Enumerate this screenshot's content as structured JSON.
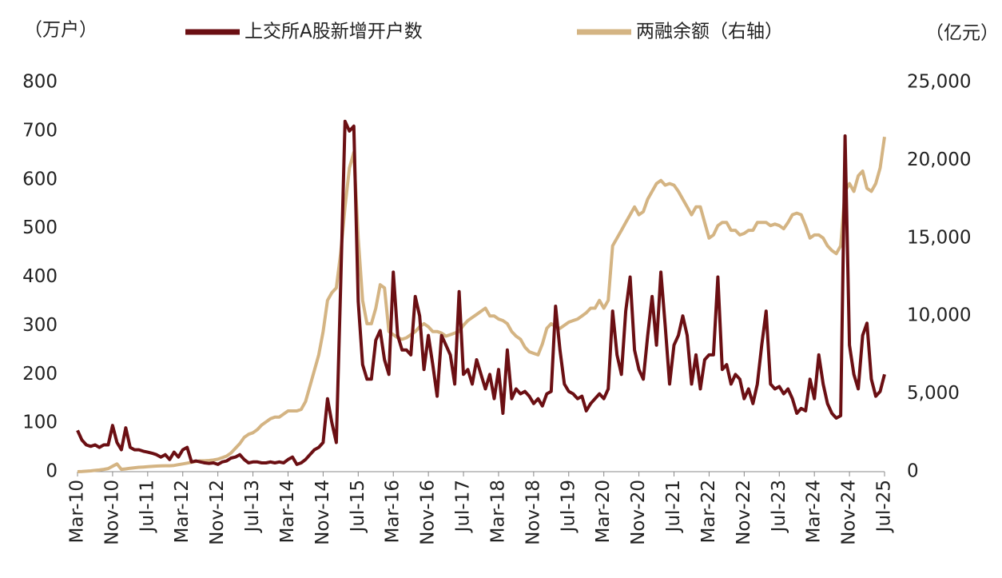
{
  "chart_data": {
    "type": "line",
    "y_label": "（万户）",
    "y2_label": "（亿元）",
    "categories": [
      "Mar-10",
      null,
      null,
      null,
      null,
      null,
      null,
      null,
      "Nov-10",
      null,
      null,
      null,
      null,
      null,
      null,
      null,
      "Jul-11",
      null,
      null,
      null,
      null,
      null,
      null,
      null,
      "Mar-12",
      null,
      null,
      null,
      null,
      null,
      null,
      null,
      "Nov-12",
      null,
      null,
      null,
      null,
      null,
      null,
      null,
      "Jul-13",
      null,
      null,
      null,
      null,
      null,
      null,
      null,
      "Mar-14",
      null,
      null,
      null,
      null,
      null,
      null,
      null,
      "Nov-14",
      null,
      null,
      null,
      null,
      null,
      null,
      null,
      "Jul-15",
      null,
      null,
      null,
      null,
      null,
      null,
      null,
      "Mar-16",
      null,
      null,
      null,
      null,
      null,
      null,
      null,
      "Nov-16",
      null,
      null,
      null,
      null,
      null,
      null,
      null,
      "Jul-17",
      null,
      null,
      null,
      null,
      null,
      null,
      null,
      "Mar-18",
      null,
      null,
      null,
      null,
      null,
      null,
      null,
      "Nov-18",
      null,
      null,
      null,
      null,
      null,
      null,
      null,
      "Jul-19",
      null,
      null,
      null,
      null,
      null,
      null,
      null,
      "Mar-20",
      null,
      null,
      null,
      null,
      null,
      null,
      null,
      "Nov-20",
      null,
      null,
      null,
      null,
      null,
      null,
      null,
      "Jul-21",
      null,
      null,
      null,
      null,
      null,
      null,
      null,
      "Mar-22",
      null,
      null,
      null,
      null,
      null,
      null,
      null,
      "Nov-22",
      null,
      null,
      null,
      null,
      null,
      null,
      null,
      "Jul-23",
      null,
      null,
      null,
      null,
      null,
      null,
      null,
      "Mar-24",
      null,
      null,
      null,
      null,
      null,
      null,
      null,
      "Nov-24",
      null,
      null,
      null,
      null,
      null,
      null,
      null,
      "Jul-25"
    ],
    "series": [
      {
        "name": "上交所A股新增开户数",
        "color": "#6b0f13",
        "axis": "y",
        "values": [
          85,
          65,
          55,
          52,
          55,
          50,
          55,
          55,
          95,
          60,
          45,
          90,
          50,
          45,
          45,
          42,
          40,
          38,
          35,
          30,
          35,
          25,
          40,
          30,
          45,
          50,
          20,
          22,
          20,
          18,
          17,
          18,
          15,
          20,
          22,
          28,
          30,
          35,
          25,
          18,
          20,
          20,
          18,
          18,
          20,
          18,
          20,
          18,
          25,
          30,
          15,
          18,
          25,
          35,
          45,
          50,
          60,
          150,
          100,
          60,
          380,
          720,
          700,
          710,
          350,
          220,
          190,
          190,
          270,
          290,
          230,
          200,
          410,
          280,
          250,
          250,
          240,
          360,
          320,
          210,
          280,
          220,
          155,
          280,
          260,
          240,
          180,
          370,
          200,
          210,
          180,
          230,
          200,
          170,
          200,
          150,
          210,
          120,
          250,
          150,
          170,
          160,
          165,
          155,
          140,
          150,
          135,
          160,
          165,
          340,
          250,
          180,
          165,
          160,
          150,
          155,
          125,
          140,
          150,
          160,
          150,
          170,
          330,
          240,
          200,
          330,
          400,
          250,
          210,
          190,
          280,
          360,
          260,
          410,
          300,
          180,
          260,
          280,
          320,
          280,
          180,
          240,
          170,
          230,
          240,
          240,
          400,
          210,
          220,
          180,
          200,
          190,
          150,
          170,
          140,
          180,
          260,
          330,
          180,
          170,
          175,
          160,
          170,
          150,
          120,
          130,
          125,
          190,
          150,
          240,
          180,
          140,
          120,
          110,
          115,
          690,
          260,
          200,
          170,
          280,
          305,
          190,
          155,
          165,
          200
        ]
      },
      {
        "name": "两融余额（右轴）",
        "color": "#d4b483",
        "axis": "y2",
        "values": [
          0,
          10,
          30,
          50,
          80,
          110,
          150,
          200,
          350,
          500,
          150,
          180,
          220,
          250,
          280,
          300,
          320,
          340,
          360,
          370,
          380,
          380,
          400,
          450,
          500,
          550,
          600,
          650,
          700,
          700,
          720,
          750,
          800,
          900,
          1000,
          1200,
          1500,
          1800,
          2200,
          2400,
          2500,
          2700,
          3000,
          3200,
          3400,
          3500,
          3500,
          3700,
          3900,
          3900,
          3900,
          4000,
          4500,
          5500,
          6500,
          7500,
          9000,
          11000,
          11500,
          11800,
          14000,
          17000,
          19500,
          20500,
          15000,
          11000,
          9500,
          9500,
          10500,
          12000,
          11800,
          9000,
          8800,
          8600,
          8500,
          8600,
          8800,
          9000,
          9300,
          9500,
          9300,
          9000,
          9000,
          8900,
          8700,
          8800,
          8900,
          9000,
          9400,
          9700,
          9900,
          10100,
          10300,
          10500,
          10000,
          10000,
          9800,
          9700,
          9500,
          9000,
          8700,
          8500,
          8000,
          7700,
          7600,
          7500,
          8200,
          9200,
          9500,
          9300,
          9200,
          9400,
          9600,
          9700,
          9800,
          10000,
          10200,
          10500,
          10500,
          11000,
          10500,
          11000,
          14500,
          15000,
          15500,
          16000,
          16500,
          17000,
          16500,
          16700,
          17500,
          18000,
          18500,
          18700,
          18400,
          18500,
          18400,
          18000,
          17500,
          17000,
          16500,
          17000,
          17000,
          16000,
          15000,
          15200,
          15800,
          16000,
          16000,
          15500,
          15500,
          15200,
          15300,
          15500,
          15500,
          16000,
          16000,
          16000,
          15800,
          15900,
          15800,
          15600,
          16000,
          16500,
          16600,
          16500,
          15800,
          15000,
          15200,
          15200,
          15000,
          14500,
          14200,
          14000,
          14500,
          18000,
          18500,
          18000,
          19000,
          19300,
          18200,
          18000,
          18500,
          19500,
          21500
        ]
      }
    ],
    "ylim": [
      0,
      800
    ],
    "yticks": [
      0,
      100,
      200,
      300,
      400,
      500,
      600,
      700,
      800
    ],
    "y2lim": [
      0,
      25000
    ],
    "y2ticks": [
      0,
      {
        "value": 5000,
        "label": "5,000"
      },
      {
        "value": 10000,
        "label": "10,000"
      },
      {
        "value": 15000,
        "label": "15,000"
      },
      {
        "value": 20000,
        "label": "20,000"
      },
      {
        "value": 25000,
        "label": "25,000"
      }
    ],
    "legend": "top"
  }
}
